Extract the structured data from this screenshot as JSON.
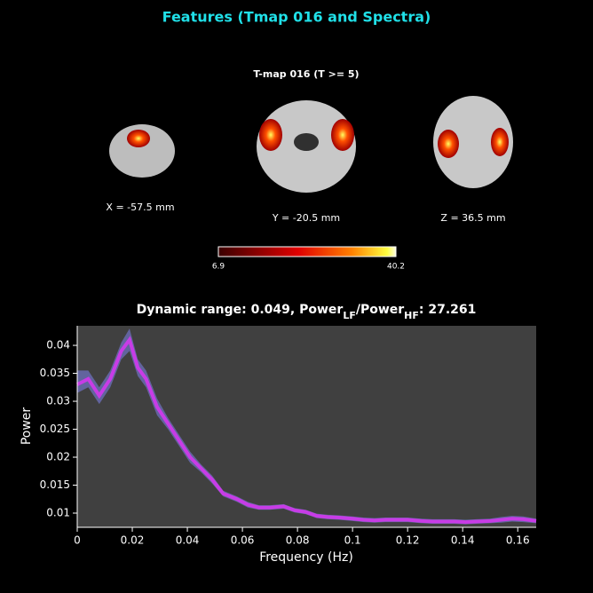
{
  "title": "Features (Tmap 016 and Spectra)",
  "tmap": {
    "title": "T-map 016 (T >= 5)",
    "slices": [
      {
        "label": "X = -57.5 mm"
      },
      {
        "label": "Y = -20.5 mm"
      },
      {
        "label": "Z = 36.5 mm"
      }
    ],
    "colorbar": {
      "min": 6.9,
      "max": 40.2
    }
  },
  "chart_data": {
    "type": "line",
    "title": [
      "Dynamic range: 0.049, Power",
      "LF",
      "/Power",
      "HF",
      ": 27.261"
    ],
    "xlabel": "Frequency (Hz)",
    "ylabel": "Power",
    "x": [
      0,
      0.004,
      0.008,
      0.012,
      0.016,
      0.019,
      0.022,
      0.025,
      0.029,
      0.033,
      0.037,
      0.041,
      0.045,
      0.049,
      0.053,
      0.058,
      0.062,
      0.066,
      0.07,
      0.075,
      0.079,
      0.083,
      0.087,
      0.091,
      0.095,
      0.1,
      0.104,
      0.108,
      0.112,
      0.116,
      0.12,
      0.125,
      0.129,
      0.133,
      0.137,
      0.141,
      0.145,
      0.15,
      0.154,
      0.158,
      0.162,
      0.1667
    ],
    "series": [
      {
        "color": "#c83ce6",
        "values": [
          0.033,
          0.034,
          0.031,
          0.034,
          0.039,
          0.041,
          0.036,
          0.034,
          0.029,
          0.026,
          0.023,
          0.02,
          0.018,
          0.016,
          0.0135,
          0.0125,
          0.0115,
          0.011,
          0.011,
          0.0112,
          0.0105,
          0.0102,
          0.0095,
          0.0093,
          0.0092,
          0.009,
          0.0088,
          0.0087,
          0.0088,
          0.0088,
          0.0088,
          0.0086,
          0.0085,
          0.0085,
          0.0085,
          0.0084,
          0.0085,
          0.0086,
          0.0088,
          0.009,
          0.0089,
          0.0086
        ]
      }
    ],
    "band": {
      "color": "#62649e",
      "upper": [
        0.0355,
        0.0355,
        0.0325,
        0.0355,
        0.0405,
        0.043,
        0.0375,
        0.0355,
        0.0305,
        0.027,
        0.024,
        0.021,
        0.0187,
        0.0167,
        0.014,
        0.013,
        0.012,
        0.0114,
        0.0114,
        0.0116,
        0.0109,
        0.0106,
        0.0099,
        0.0097,
        0.0096,
        0.0094,
        0.0092,
        0.0091,
        0.0092,
        0.0092,
        0.0092,
        0.009,
        0.0089,
        0.0089,
        0.0089,
        0.0088,
        0.0089,
        0.009,
        0.0093,
        0.0095,
        0.0094,
        0.009
      ],
      "lower": [
        0.0315,
        0.0325,
        0.0295,
        0.0325,
        0.0375,
        0.039,
        0.0345,
        0.0325,
        0.0275,
        0.025,
        0.022,
        0.019,
        0.0173,
        0.0153,
        0.013,
        0.012,
        0.011,
        0.0106,
        0.0106,
        0.0108,
        0.0101,
        0.0098,
        0.0091,
        0.0089,
        0.0088,
        0.0086,
        0.0084,
        0.0083,
        0.0084,
        0.0084,
        0.0084,
        0.0082,
        0.0081,
        0.0081,
        0.0081,
        0.008,
        0.0081,
        0.0082,
        0.0083,
        0.0085,
        0.0084,
        0.0082
      ]
    },
    "xlim": [
      0,
      0.1667
    ],
    "ylim": [
      0.00746,
      0.0435
    ],
    "xticks": [
      0,
      0.02,
      0.04,
      0.06,
      0.08,
      0.1,
      0.12,
      0.14,
      0.16
    ],
    "yticks": [
      0.01,
      0.015,
      0.02,
      0.025,
      0.03,
      0.035,
      0.04
    ]
  }
}
